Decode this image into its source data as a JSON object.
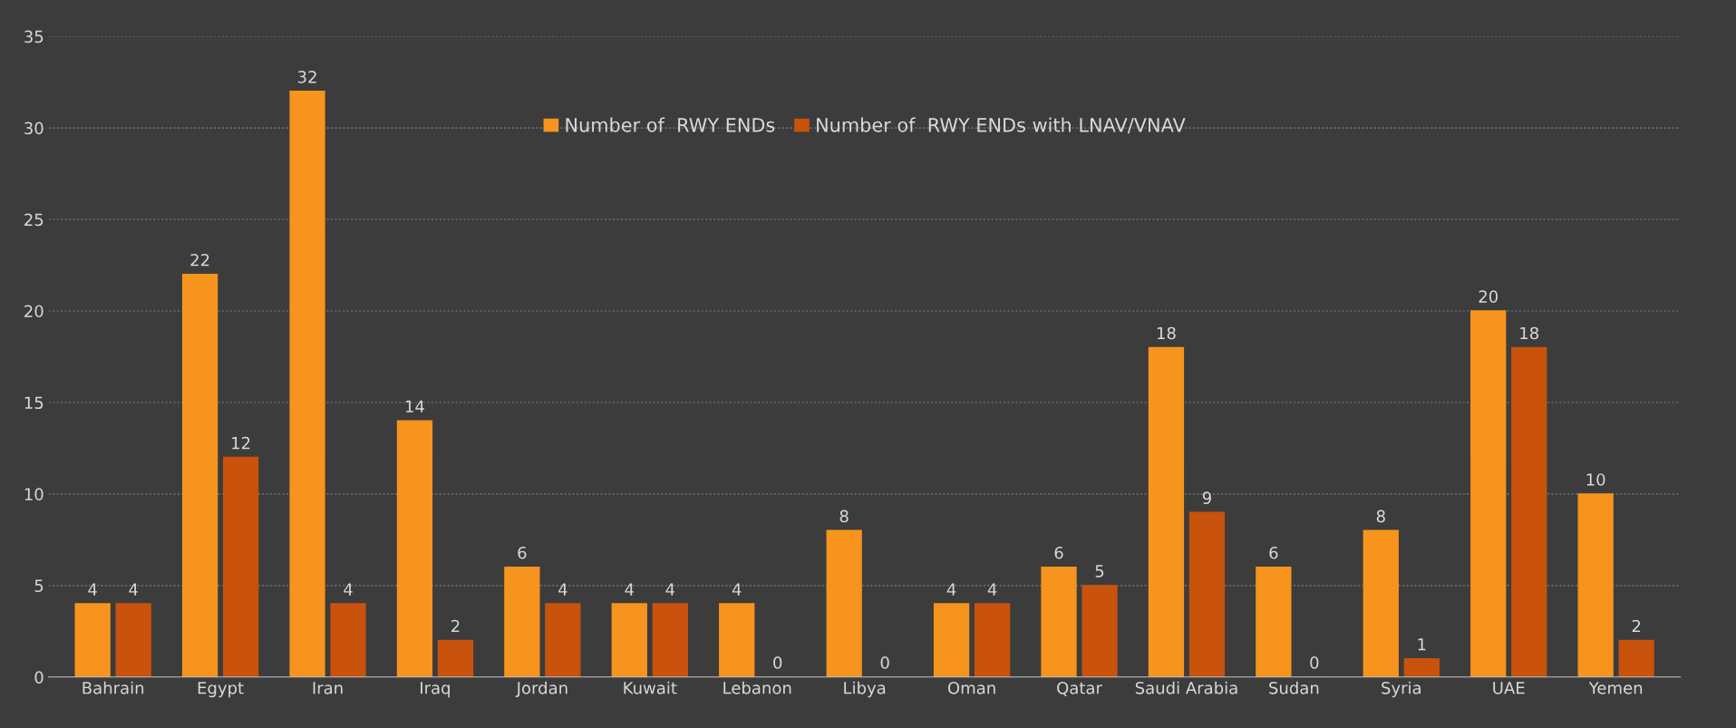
{
  "chart_data": {
    "type": "bar",
    "categories": [
      "Bahrain",
      "Egypt",
      "Iran",
      "Iraq",
      "Jordan",
      "Kuwait",
      "Lebanon",
      "Libya",
      "Oman",
      "Qatar",
      "Saudi Arabia",
      "Sudan",
      "Syria",
      "UAE",
      "Yemen"
    ],
    "series": [
      {
        "name": "Number of  RWY ENDs",
        "color": "#f7941d",
        "values": [
          4,
          22,
          32,
          14,
          6,
          4,
          4,
          8,
          4,
          6,
          18,
          6,
          8,
          20,
          10
        ]
      },
      {
        "name": "Number of  RWY ENDs with LNAV/VNAV",
        "color": "#c9520c",
        "values": [
          4,
          12,
          4,
          2,
          4,
          4,
          0,
          0,
          4,
          5,
          9,
          0,
          1,
          18,
          2
        ]
      }
    ],
    "ylim": [
      0,
      35
    ],
    "yticks": [
      0,
      5,
      10,
      15,
      20,
      25,
      30,
      35
    ],
    "grid": "y",
    "legend": "top",
    "data_labels": true
  }
}
